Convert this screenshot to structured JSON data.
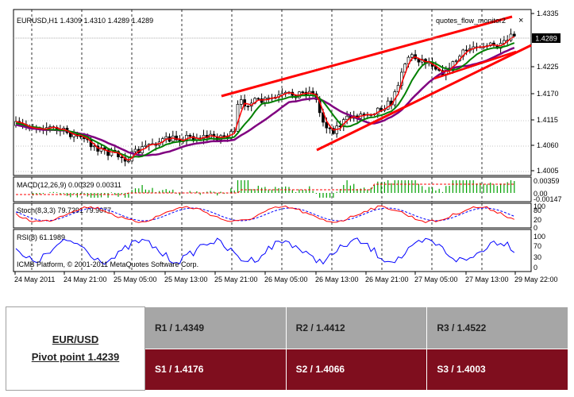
{
  "main_chart": {
    "header": "EURUSD,H1  1.4309 1.4310 1.4289 1.4289",
    "indicator_label": "quotes_flow_monitor2",
    "close_glyph": "×",
    "price_ticks": [
      "1.4335",
      "1.4289",
      "1.4225",
      "1.4170",
      "1.4115",
      "1.4060",
      "1.4005"
    ],
    "current_price": "1.4289"
  },
  "macd": {
    "label": "MACD(12,26,9) 0.00329 0.00311",
    "ticks": [
      "0.00359",
      "0.00",
      "-0.00147"
    ]
  },
  "stoch": {
    "label": "Stoch(8,3,3) 79.7291 79.9077",
    "ticks": [
      "100",
      "80",
      "20",
      "0"
    ]
  },
  "rsi": {
    "label": "RSI(8) 61.1989",
    "ticks": [
      "100",
      "70",
      "30",
      "0"
    ],
    "copyright": "ICMB Platform, © 2001-2011 MetaQuotes Software Corp."
  },
  "time_axis": [
    "24 May 2011",
    "24 May 21:00",
    "25 May 05:00",
    "25 May 13:00",
    "25 May 21:00",
    "26 May 05:00",
    "26 May 13:00",
    "26 May 21:00",
    "27 May 05:00",
    "27 May 13:00",
    "29 May 22:00"
  ],
  "pivot": {
    "pair": "EUR/USD",
    "pivot_label": "Pivot point 1.4239",
    "resistance": [
      "R1 / 1.4349",
      "R2 / 1.4412",
      "R3 / 1.4522"
    ],
    "support": [
      "S1 / 1.4176",
      "S2 / 1.4066",
      "S3 / 1.4003"
    ]
  },
  "colors": {
    "bull_candle": "#ffffff",
    "bear_candle": "#000000",
    "ma_fast": "#ff0000",
    "ma_mid": "#008000",
    "ma_slow": "#800080",
    "trendline": "#ff0000",
    "macd_hist": "#00a000",
    "macd_signal": "#ff0000",
    "stoch_main": "#ff0000",
    "stoch_signal": "#0000ff",
    "rsi": "#0000ff",
    "support_row": "#7f0e1e",
    "resistance_row": "#a6a6a6"
  }
}
